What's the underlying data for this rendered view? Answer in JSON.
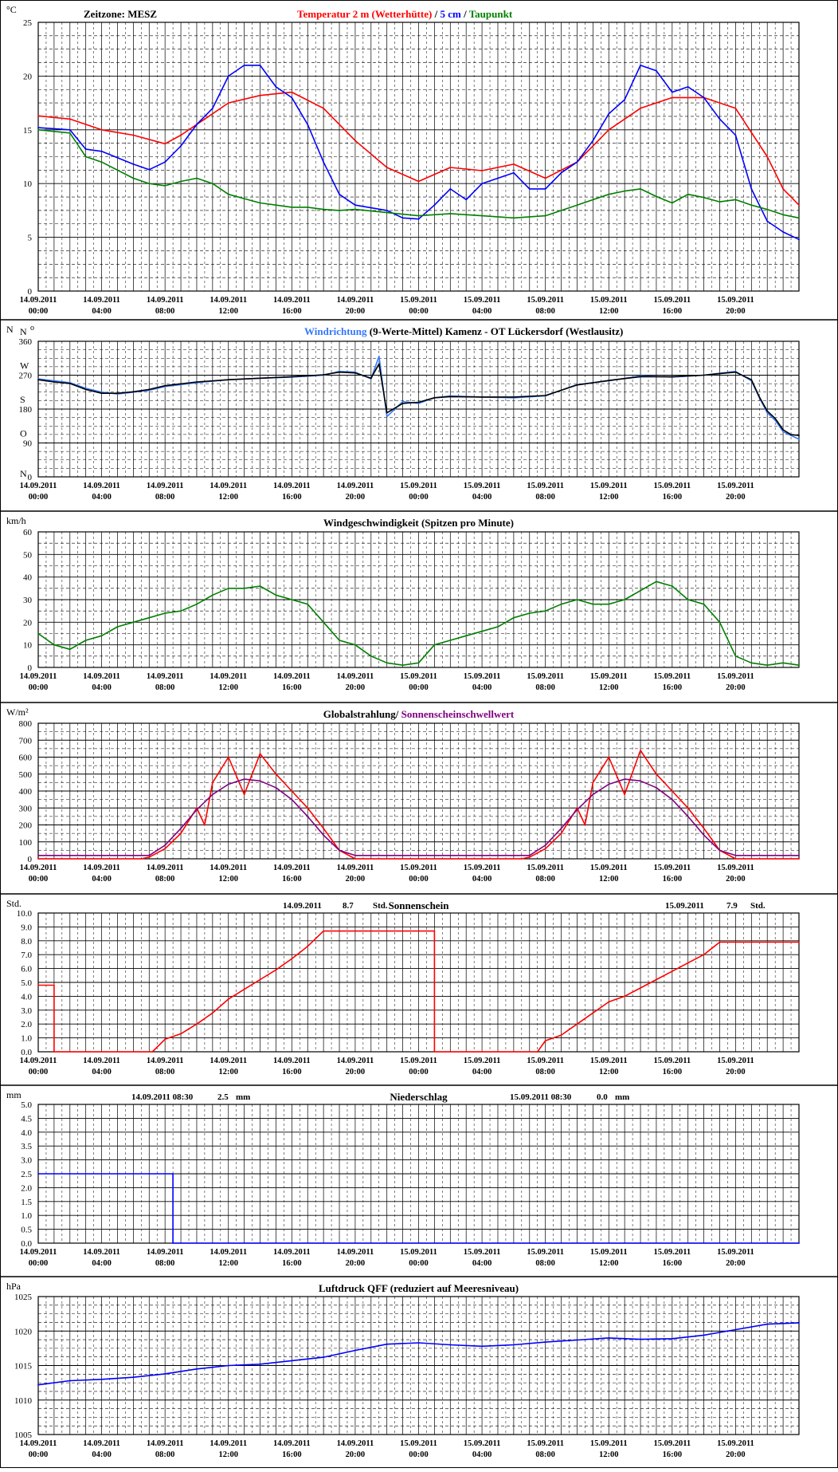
{
  "x_ticks": [
    "14.09.2011 00:00",
    "14.09.2011 04:00",
    "14.09.2011 08:00",
    "14.09.2011 12:00",
    "14.09.2011 16:00",
    "14.09.2011 20:00",
    "15.09.2011 00:00",
    "15.09.2011 04:00",
    "15.09.2011 08:00",
    "15.09.2011 12:00",
    "15.09.2011 16:00",
    "15.09.2011 20:00"
  ],
  "colors": {
    "red": "#ff0000",
    "blue": "#0000ff",
    "green": "#008000",
    "lightblue": "#3377ff",
    "purple": "#800080",
    "black": "#000000",
    "grid": "#000000"
  },
  "chart_data": [
    {
      "type": "line",
      "unit": "°C",
      "timezone": "Zeitzone: MESZ",
      "title_parts": [
        {
          "text": "Temperatur 2 m (Wetterhütte)",
          "color": "#ff0000"
        },
        {
          "text": " / ",
          "color": "#000000"
        },
        {
          "text": "5 cm",
          "color": "#0000ff"
        },
        {
          "text": " / ",
          "color": "#000000"
        },
        {
          "text": "Taupunkt",
          "color": "#008000"
        }
      ],
      "ylim": [
        0,
        25
      ],
      "yticks": [
        "0",
        "5",
        "10",
        "15",
        "20",
        "25"
      ],
      "series": [
        {
          "name": "Temperatur 2 m (Wetterhütte)",
          "color": "#ff0000",
          "x": [
            0,
            2,
            4,
            6,
            8,
            9,
            10,
            12,
            14,
            16,
            18,
            20,
            22,
            24,
            26,
            28,
            30,
            32,
            34,
            36,
            38,
            40,
            42,
            44,
            46,
            47,
            48
          ],
          "y": [
            16.3,
            16,
            15,
            14.5,
            13.7,
            14.5,
            15.5,
            17.5,
            18.2,
            18.5,
            17,
            14,
            11.5,
            10.2,
            11.5,
            11.2,
            11.8,
            10.5,
            12,
            15,
            17,
            18,
            18,
            17,
            12.5,
            9.5,
            8
          ]
        },
        {
          "name": "5 cm",
          "color": "#0000ff",
          "x": [
            0,
            2,
            3,
            4,
            6,
            7,
            8,
            9,
            10,
            11,
            12,
            13,
            14,
            15,
            16,
            17,
            18,
            19,
            20,
            22,
            23,
            24,
            25,
            26,
            27,
            28,
            29,
            30,
            31,
            32,
            33,
            34,
            35,
            36,
            37,
            38,
            39,
            40,
            41,
            42,
            43,
            44,
            45,
            46,
            47,
            48
          ],
          "y": [
            15.2,
            15,
            13.2,
            13,
            11.8,
            11.3,
            12,
            13.5,
            15.5,
            17,
            20,
            21,
            21,
            19,
            18,
            15.5,
            12,
            9,
            8,
            7.5,
            6.8,
            6.7,
            8,
            9.5,
            8.5,
            10,
            10.5,
            11,
            9.5,
            9.5,
            11,
            12,
            14,
            16.5,
            17.8,
            21,
            20.5,
            18.5,
            19,
            18,
            16,
            14.5,
            9.5,
            6.5,
            5.5,
            4.8
          ]
        },
        {
          "name": "Taupunkt",
          "color": "#008000",
          "x": [
            0,
            2,
            3,
            4,
            6,
            7,
            8,
            9,
            10,
            11,
            12,
            13,
            14,
            15,
            16,
            17,
            18,
            19,
            20,
            22,
            24,
            26,
            28,
            30,
            32,
            34,
            36,
            37,
            38,
            39,
            40,
            41,
            42,
            43,
            44,
            45,
            46,
            47,
            48
          ],
          "y": [
            15,
            14.7,
            12.5,
            12,
            10.5,
            10,
            9.8,
            10.2,
            10.5,
            10,
            9,
            8.6,
            8.2,
            8,
            7.8,
            7.8,
            7.6,
            7.5,
            7.6,
            7.3,
            7,
            7.2,
            7,
            6.8,
            7,
            8,
            9,
            9.3,
            9.5,
            8.8,
            8.2,
            9,
            8.7,
            8.3,
            8.5,
            8,
            7.6,
            7.1,
            6.8
          ]
        }
      ]
    },
    {
      "type": "line",
      "unit": "N",
      "unit_top": "o",
      "title_parts": [
        {
          "text": "Windrichtung",
          "color": "#3377ff"
        },
        {
          "text": " (9-Werte-Mittel)",
          "color": "#000000"
        },
        {
          "text": "     Kamenz - OT Lückersdorf (Westlausitz)",
          "color": "#000000"
        }
      ],
      "ylim": [
        0,
        360
      ],
      "yticks": [
        "0",
        "90",
        "180",
        "270",
        "360"
      ],
      "direction_labels": [
        "N",
        "O",
        "S",
        "W",
        "N"
      ],
      "series": [
        {
          "name": "Windrichtung",
          "color": "#3377ff",
          "x": [
            0,
            1,
            2,
            3,
            4,
            5,
            6,
            7,
            8,
            10,
            12,
            14,
            16,
            18,
            19,
            20,
            21,
            21.5,
            22,
            23,
            24,
            25,
            26,
            28,
            30,
            32,
            34,
            36,
            38,
            40,
            42,
            43,
            44,
            45,
            45.5,
            46,
            46.5,
            47,
            47.5,
            48
          ],
          "y": [
            260,
            255,
            250,
            235,
            225,
            220,
            225,
            230,
            240,
            250,
            258,
            262,
            265,
            270,
            280,
            278,
            260,
            320,
            160,
            200,
            195,
            210,
            215,
            212,
            210,
            215,
            245,
            255,
            268,
            265,
            270,
            275,
            280,
            255,
            210,
            170,
            150,
            120,
            110,
            100
          ]
        },
        {
          "name": "9-Werte-Mittel",
          "color": "#000000",
          "x": [
            0,
            1,
            2,
            3,
            4,
            5,
            6,
            7,
            8,
            10,
            12,
            14,
            16,
            18,
            19,
            20,
            21,
            21.5,
            22,
            23,
            24,
            25,
            26,
            28,
            30,
            32,
            34,
            36,
            38,
            40,
            42,
            43,
            44,
            45,
            45.5,
            46,
            46.5,
            47,
            47.5,
            48
          ],
          "y": [
            258,
            252,
            248,
            232,
            222,
            222,
            226,
            232,
            242,
            252,
            258,
            262,
            266,
            271,
            278,
            276,
            262,
            300,
            170,
            195,
            198,
            210,
            213,
            212,
            212,
            216,
            244,
            256,
            266,
            266,
            270,
            274,
            278,
            258,
            212,
            175,
            155,
            125,
            112,
            110
          ]
        }
      ]
    },
    {
      "type": "line",
      "unit": "km/h",
      "title_parts": [
        {
          "text": "Windgeschwindigkeit (Spitzen pro Minute)",
          "color": "#000000"
        }
      ],
      "ylim": [
        0,
        60
      ],
      "yticks": [
        "0",
        "10",
        "20",
        "30",
        "40",
        "50",
        "60"
      ],
      "series": [
        {
          "name": "Windgeschwindigkeit",
          "color": "#008000",
          "x": [
            0,
            1,
            2,
            3,
            4,
            5,
            6,
            7,
            8,
            9,
            10,
            11,
            12,
            13,
            14,
            15,
            16,
            17,
            18,
            19,
            20,
            21,
            22,
            23,
            24,
            25,
            26,
            27,
            28,
            29,
            30,
            31,
            32,
            33,
            34,
            35,
            36,
            37,
            38,
            39,
            40,
            41,
            42,
            43,
            44,
            45,
            46,
            47,
            48
          ],
          "y": [
            15,
            10,
            8,
            12,
            14,
            18,
            20,
            22,
            24,
            25,
            28,
            32,
            35,
            35,
            36,
            32,
            30,
            28,
            20,
            12,
            10,
            5,
            2,
            1,
            2,
            10,
            12,
            14,
            16,
            18,
            22,
            24,
            25,
            28,
            30,
            28,
            28,
            30,
            34,
            38,
            36,
            30,
            28,
            20,
            5,
            2,
            1,
            2,
            1
          ]
        }
      ]
    },
    {
      "type": "line",
      "unit": "W/m²",
      "title_parts": [
        {
          "text": "Globalstrahlung/ ",
          "color": "#000000"
        },
        {
          "text": "Sonnenscheinschwellwert",
          "color": "#800080"
        }
      ],
      "ylim": [
        0,
        800
      ],
      "yticks": [
        "0",
        "100",
        "200",
        "300",
        "400",
        "500",
        "600",
        "700",
        "800"
      ],
      "series": [
        {
          "name": "Globalstrahlung",
          "color": "#ff0000",
          "x": [
            0,
            6.5,
            7,
            8,
            9,
            10,
            10.5,
            11,
            12,
            13,
            14,
            15,
            16,
            17,
            18,
            19,
            20,
            24,
            30.5,
            31,
            32,
            33,
            34,
            34.5,
            35,
            36,
            37,
            38,
            39,
            40,
            41,
            42,
            43,
            44,
            48
          ],
          "y": [
            0,
            0,
            10,
            60,
            150,
            300,
            200,
            450,
            600,
            380,
            620,
            500,
            400,
            300,
            180,
            50,
            0,
            0,
            0,
            10,
            60,
            150,
            300,
            200,
            450,
            600,
            380,
            640,
            500,
            400,
            300,
            180,
            50,
            0,
            0
          ]
        },
        {
          "name": "Sonnenscheinschwellwert",
          "color": "#800080",
          "x": [
            0,
            7,
            8,
            9,
            10,
            11,
            12,
            13,
            14,
            15,
            16,
            17,
            18,
            19,
            20,
            31,
            32,
            33,
            34,
            35,
            36,
            37,
            38,
            39,
            40,
            41,
            42,
            43,
            44,
            48
          ],
          "y": [
            20,
            20,
            80,
            180,
            290,
            380,
            440,
            470,
            460,
            420,
            350,
            250,
            140,
            50,
            20,
            20,
            80,
            180,
            290,
            380,
            440,
            470,
            460,
            420,
            350,
            250,
            140,
            50,
            20,
            20
          ]
        }
      ]
    },
    {
      "type": "line",
      "unit": "Std.",
      "title_parts": [
        {
          "text": "Sonnenschein",
          "color": "#000000"
        }
      ],
      "summary": [
        {
          "date": "14.09.2011",
          "value": "8.7",
          "unit": "Std."
        },
        {
          "date": "15.09.2011",
          "value": "7.9",
          "unit": "Std."
        }
      ],
      "ylim": [
        0,
        10
      ],
      "yticks": [
        "0.0",
        "1.0",
        "2.0",
        "3.0",
        "4.0",
        "5.0",
        "6.0",
        "7.0",
        "8.0",
        "9.0",
        "10.0"
      ],
      "series": [
        {
          "name": "Sonnenschein",
          "color": "#ff0000",
          "x": [
            0,
            1,
            1,
            7.2,
            8,
            9,
            10,
            11,
            12,
            13,
            14,
            15,
            16,
            17,
            18,
            19,
            25,
            25,
            31.5,
            32,
            33,
            34,
            35,
            36,
            37,
            38,
            39,
            40,
            41,
            42,
            43,
            44,
            48
          ],
          "y": [
            4.8,
            4.8,
            0,
            0,
            0.9,
            1.3,
            2,
            2.8,
            3.8,
            4.5,
            5.2,
            5.9,
            6.7,
            7.6,
            8.7,
            8.7,
            8.7,
            0,
            0,
            0.8,
            1.2,
            2,
            2.8,
            3.6,
            4,
            4.6,
            5.2,
            5.8,
            6.4,
            7,
            7.9,
            7.9,
            7.9
          ]
        }
      ]
    },
    {
      "type": "line",
      "unit": "mm",
      "title_parts": [
        {
          "text": "Niederschlag",
          "color": "#000000"
        }
      ],
      "summary": [
        {
          "date": "14.09.2011 08:30",
          "value": "2.5",
          "unit": "mm"
        },
        {
          "date": "15.09.2011 08:30",
          "value": "0.0",
          "unit": "mm"
        }
      ],
      "ylim": [
        0,
        5
      ],
      "yticks": [
        "0.0",
        "0.5",
        "1.0",
        "1.5",
        "2.0",
        "2.5",
        "3.0",
        "3.5",
        "4.0",
        "4.5",
        "5.0"
      ],
      "series": [
        {
          "name": "Niederschlag",
          "color": "#0000ff",
          "x": [
            0,
            8.5,
            8.5,
            48
          ],
          "y": [
            2.5,
            2.5,
            0,
            0
          ]
        }
      ]
    },
    {
      "type": "line",
      "unit": "hPa",
      "title_parts": [
        {
          "text": "Luftdruck QFF (reduziert auf Meeresniveau)",
          "color": "#000000"
        }
      ],
      "ylim": [
        1005,
        1025
      ],
      "yticks": [
        "1005",
        "1010",
        "1015",
        "1020",
        "1025"
      ],
      "series": [
        {
          "name": "Luftdruck QFF",
          "color": "#0000ff",
          "x": [
            0,
            2,
            4,
            6,
            8,
            10,
            12,
            14,
            16,
            18,
            20,
            22,
            24,
            26,
            28,
            30,
            32,
            34,
            36,
            38,
            40,
            42,
            44,
            46,
            48
          ],
          "y": [
            1012.2,
            1012.8,
            1013,
            1013.3,
            1013.8,
            1014.5,
            1015,
            1015.2,
            1015.7,
            1016.2,
            1017.2,
            1018.1,
            1018.3,
            1018,
            1017.8,
            1018,
            1018.4,
            1018.7,
            1019,
            1018.8,
            1018.9,
            1019.4,
            1020.2,
            1021,
            1021.2
          ]
        }
      ]
    }
  ]
}
